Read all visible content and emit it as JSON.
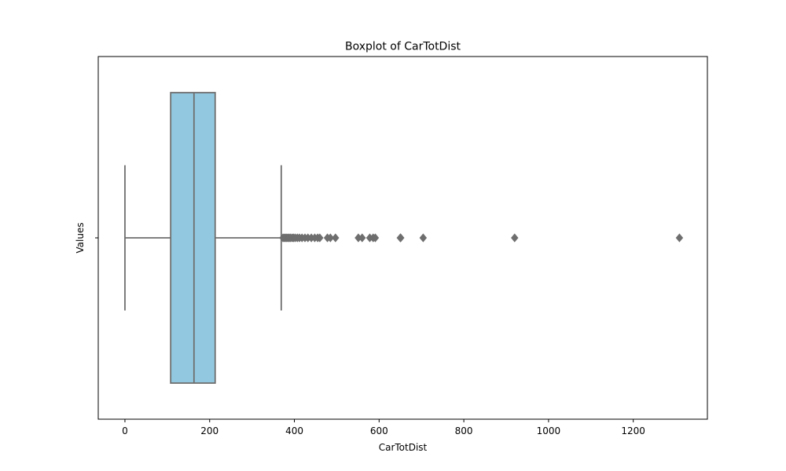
{
  "chart_data": {
    "type": "boxplot",
    "orientation": "horizontal",
    "title": "Boxplot of CarTotDist",
    "xlabel": "CarTotDist",
    "ylabel": "Values",
    "xlim": [
      -63,
      1375
    ],
    "x_ticks": [
      0,
      200,
      400,
      600,
      800,
      1000,
      1200
    ],
    "x_tick_labels": [
      "0",
      "200",
      "400",
      "600",
      "800",
      "1000",
      "1200"
    ],
    "y_ticks": [
      ""
    ],
    "grid": false,
    "legend": "none",
    "box": {
      "whisker_low": 0,
      "q1": 108,
      "median": 163,
      "q3": 213,
      "whisker_high": 369
    },
    "outliers": [
      373,
      376,
      379,
      382,
      385,
      388,
      391,
      395,
      398,
      402,
      407,
      412,
      418,
      425,
      432,
      440,
      448,
      455,
      460,
      478,
      485,
      497,
      551,
      560,
      578,
      586,
      591,
      650,
      651,
      704,
      920,
      1309
    ],
    "colors": {
      "box_fill": "#92c9e0",
      "line": "#6e6e6e"
    }
  }
}
